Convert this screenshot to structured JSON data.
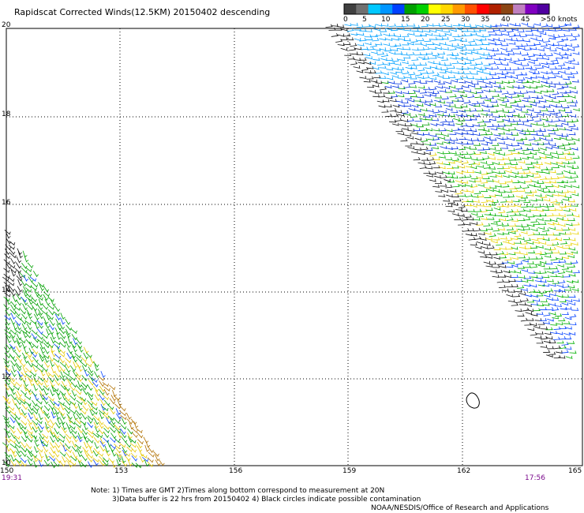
{
  "title": "Rapidscat Corrected Winds(12.5KM) 20150402 descending",
  "legend": {
    "labels": [
      "0",
      "5",
      "10",
      "15",
      "20",
      "25",
      "30",
      "35",
      "40",
      "45",
      ">50 knots"
    ],
    "colors": [
      "#404040",
      "#707070",
      "#00c8ff",
      "#0096ff",
      "#0040ff",
      "#00a000",
      "#00d000",
      "#ffff00",
      "#ffd700",
      "#ff9900",
      "#ff5000",
      "#ff0000",
      "#b02000",
      "#8b4513",
      "#c080c0",
      "#8000c0",
      "#5000a0"
    ]
  },
  "axes": {
    "y_ticks": [
      "20",
      "18",
      "16",
      "14",
      "12",
      "10"
    ],
    "x_ticks": [
      "150",
      "153",
      "156",
      "159",
      "162",
      "165"
    ]
  },
  "times": {
    "left": "19:31",
    "right": "17:56"
  },
  "notes": {
    "line1": "Note: 1) Times are GMT 2)Times along bottom correspond to measurement at 20N",
    "line2": "3)Data buffer is 22 hrs from 20150402 4) Black circles indicate possible contamination",
    "line3": "NOAA/NESDIS/Office of Research and Applications"
  }
}
